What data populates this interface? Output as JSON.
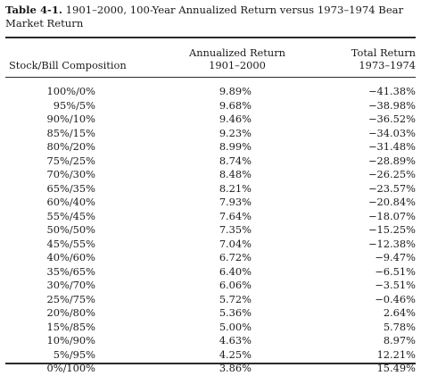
{
  "caption": {
    "number": "Table 4-1.",
    "text": "1901–2000, 100-Year Annualized Return versus 1973–1974 Bear Market Return"
  },
  "headers": {
    "composition": "Stock/Bill Composition",
    "annualized_line1": "Annualized Return",
    "annualized_line2": "1901–2000",
    "total_line1": "Total Return",
    "total_line2": "1973–1974"
  },
  "rows": [
    {
      "composition": "100%/0%",
      "annualized": "9.89%",
      "total": "−41.38%"
    },
    {
      "composition": "95%/5%",
      "annualized": "9.68%",
      "total": "−38.98%"
    },
    {
      "composition": "90%/10%",
      "annualized": "9.46%",
      "total": "−36.52%"
    },
    {
      "composition": "85%/15%",
      "annualized": "9.23%",
      "total": "−34.03%"
    },
    {
      "composition": "80%/20%",
      "annualized": "8.99%",
      "total": "−31.48%"
    },
    {
      "composition": "75%/25%",
      "annualized": "8.74%",
      "total": "−28.89%"
    },
    {
      "composition": "70%/30%",
      "annualized": "8.48%",
      "total": "−26.25%"
    },
    {
      "composition": "65%/35%",
      "annualized": "8.21%",
      "total": "−23.57%"
    },
    {
      "composition": "60%/40%",
      "annualized": "7.93%",
      "total": "−20.84%"
    },
    {
      "composition": "55%/45%",
      "annualized": "7.64%",
      "total": "−18.07%"
    },
    {
      "composition": "50%/50%",
      "annualized": "7.35%",
      "total": "−15.25%"
    },
    {
      "composition": "45%/55%",
      "annualized": "7.04%",
      "total": "−12.38%"
    },
    {
      "composition": "40%/60%",
      "annualized": "6.72%",
      "total": "−9.47%"
    },
    {
      "composition": "35%/65%",
      "annualized": "6.40%",
      "total": "−6.51%"
    },
    {
      "composition": "30%/70%",
      "annualized": "6.06%",
      "total": "−3.51%"
    },
    {
      "composition": "25%/75%",
      "annualized": "5.72%",
      "total": "−0.46%"
    },
    {
      "composition": "20%/80%",
      "annualized": "5.36%",
      "total": "2.64%"
    },
    {
      "composition": "15%/85%",
      "annualized": "5.00%",
      "total": "5.78%"
    },
    {
      "composition": "10%/90%",
      "annualized": "4.63%",
      "total": "8.97%"
    },
    {
      "composition": "5%/95%",
      "annualized": "4.25%",
      "total": "12.21%"
    },
    {
      "composition": "0%/100%",
      "annualized": "3.86%",
      "total": "15.49%"
    }
  ]
}
